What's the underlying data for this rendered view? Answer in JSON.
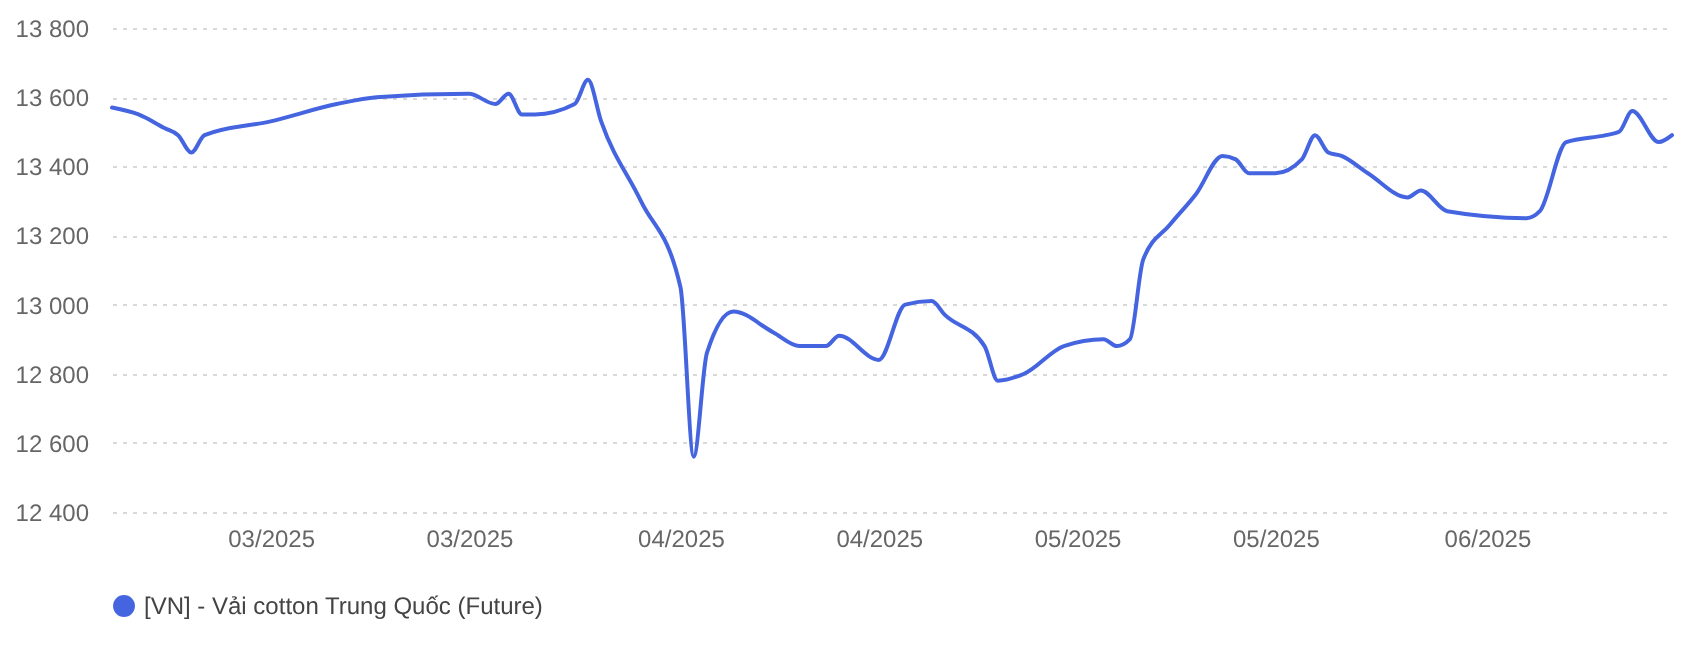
{
  "chart_data": {
    "type": "line",
    "x": [
      "2025-02-17",
      "2025-02-19",
      "2025-02-21",
      "2025-02-22",
      "2025-02-23",
      "2025-02-24",
      "2025-03-01",
      "2025-03-06",
      "2025-03-09",
      "2025-03-16",
      "2025-03-18",
      "2025-03-19",
      "2025-03-20",
      "2025-03-21",
      "2025-03-24",
      "2025-03-25",
      "2025-03-26",
      "2025-03-29",
      "2025-04-01",
      "2025-04-02",
      "2025-04-03",
      "2025-04-05",
      "2025-04-08",
      "2025-04-10",
      "2025-04-12",
      "2025-04-13",
      "2025-04-16",
      "2025-04-18",
      "2025-04-20",
      "2025-04-21",
      "2025-04-24",
      "2025-04-25",
      "2025-04-27",
      "2025-04-30",
      "2025-05-03",
      "2025-05-04",
      "2025-05-05",
      "2025-05-06",
      "2025-05-08",
      "2025-05-10",
      "2025-05-12",
      "2025-05-13",
      "2025-05-14",
      "2025-05-16",
      "2025-05-18",
      "2025-05-19",
      "2025-05-20",
      "2025-05-21",
      "2025-05-23",
      "2025-05-26",
      "2025-05-27",
      "2025-05-29",
      "2025-06-04",
      "2025-06-05",
      "2025-06-07",
      "2025-06-10",
      "2025-06-11",
      "2025-06-12",
      "2025-06-14",
      "2025-06-15"
    ],
    "series": [
      {
        "name": "[VN] - Vải cotton Trung Quốc (Future)",
        "color": "#4565e0",
        "values": [
          13570,
          13550,
          13510,
          13490,
          13440,
          13490,
          13530,
          13580,
          13600,
          13610,
          13580,
          13610,
          13550,
          13550,
          13580,
          13650,
          13530,
          13300,
          13050,
          12560,
          12860,
          12980,
          12920,
          12880,
          12880,
          12910,
          12840,
          13000,
          13010,
          12970,
          12880,
          12780,
          12800,
          12880,
          12900,
          12880,
          12900,
          13130,
          13230,
          13320,
          13430,
          13420,
          13380,
          13380,
          13420,
          13490,
          13440,
          13430,
          13380,
          13310,
          13330,
          13270,
          13250,
          13270,
          13470,
          13490,
          13500,
          13560,
          13470,
          13490
        ]
      }
    ],
    "xlim": [
      "2025-02-17",
      "2025-06-15"
    ],
    "xticks": [
      {
        "value": "2025-03-01",
        "label": "03/2025"
      },
      {
        "value": "2025-03-16",
        "label": "03/2025"
      },
      {
        "value": "2025-04-01",
        "label": "04/2025"
      },
      {
        "value": "2025-04-16",
        "label": "04/2025"
      },
      {
        "value": "2025-05-01",
        "label": "05/2025"
      },
      {
        "value": "2025-05-16",
        "label": "05/2025"
      },
      {
        "value": "2025-06-01",
        "label": "06/2025"
      }
    ],
    "ylim": [
      12400,
      13800
    ],
    "yticks": [
      {
        "value": 12400,
        "label": "12 400"
      },
      {
        "value": 12600,
        "label": "12 600"
      },
      {
        "value": 12800,
        "label": "12 800"
      },
      {
        "value": 13000,
        "label": "13 000"
      },
      {
        "value": 13200,
        "label": "13 200"
      },
      {
        "value": 13400,
        "label": "13 400"
      },
      {
        "value": 13600,
        "label": "13 600"
      },
      {
        "value": 13800,
        "label": "13 800"
      }
    ],
    "grid": "y",
    "legend": "bottom",
    "marker": "none",
    "line_style": "solid"
  }
}
